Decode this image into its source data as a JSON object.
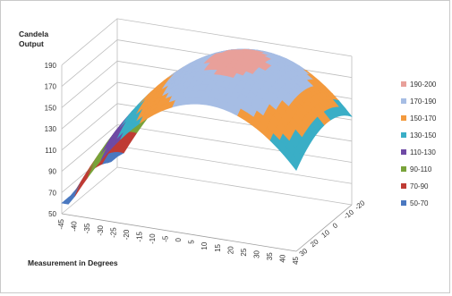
{
  "chart_data": {
    "type": "surface",
    "title": "",
    "zlabel": "Candela Output",
    "xlabel": "Measurement in Degrees",
    "ylabel": "",
    "zlim": [
      50,
      200
    ],
    "z_ticks": [
      "50",
      "70",
      "90",
      "110",
      "130",
      "150",
      "170",
      "190"
    ],
    "x_ticks": [
      "-45",
      "-40",
      "-35",
      "-30",
      "-25",
      "-20",
      "-15",
      "-10",
      "-5",
      "0",
      "5",
      "10",
      "15",
      "20",
      "25",
      "30",
      "35",
      "40",
      "45"
    ],
    "y_ticks": [
      "-20",
      "-10",
      "0",
      "10",
      "20",
      "30"
    ],
    "y_ticks_note_visible": [
      "-20",
      "-10",
      "0",
      "10",
      "20",
      "30"
    ],
    "grid": true,
    "legend_position": "right",
    "legend": [
      {
        "label": "190-200",
        "color": "#e8a09a"
      },
      {
        "label": "170-190",
        "color": "#a6bde4"
      },
      {
        "label": "150-170",
        "color": "#f39a3e"
      },
      {
        "label": "130-150",
        "color": "#3aaec6"
      },
      {
        "label": "110-130",
        "color": "#6f4aa5"
      },
      {
        "label": "90-110",
        "color": "#79a33a"
      },
      {
        "label": "70-90",
        "color": "#bf3b34"
      },
      {
        "label": "50-70",
        "color": "#4a78c0"
      }
    ],
    "peak_value": 195,
    "front_edge_min": 70,
    "back_edge_right_min": 120
  }
}
